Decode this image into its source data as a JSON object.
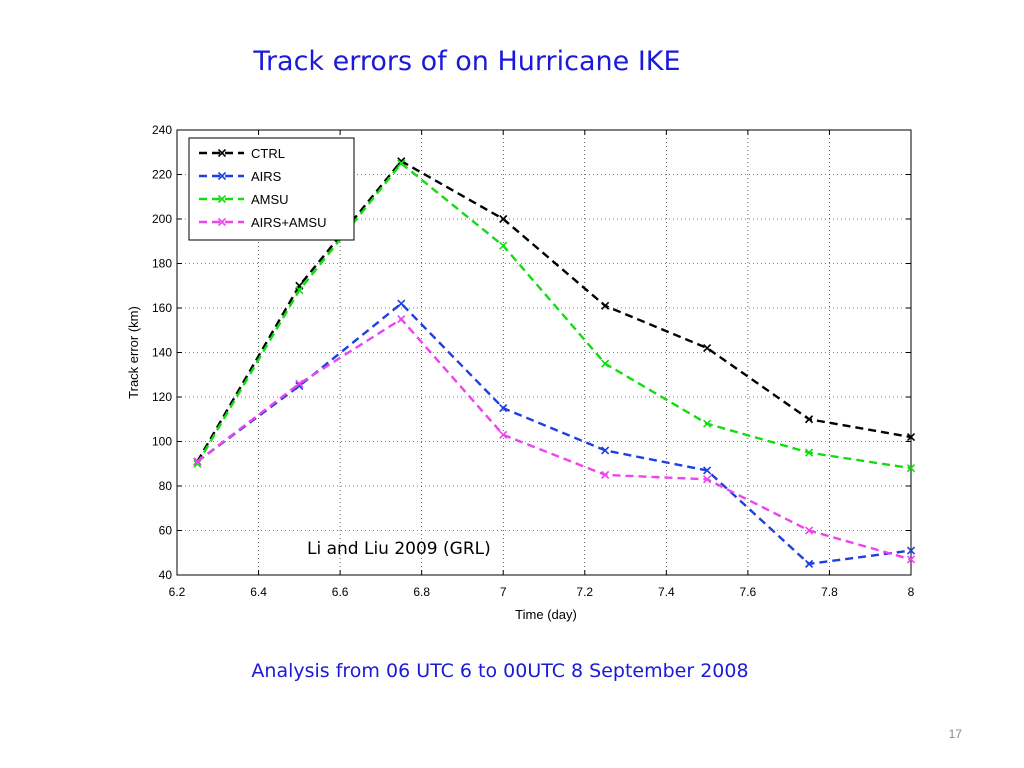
{
  "slide": {
    "title": "Track errors of on Hurricane IKE",
    "subtitle": "Analysis from 06 UTC 6 to 00UTC 8 September 2008",
    "page_number": "17"
  },
  "chart_data": {
    "type": "line",
    "xlabel": "Time (day)",
    "ylabel": "Track error (km)",
    "xlim": [
      6.2,
      8.0
    ],
    "ylim": [
      40,
      240
    ],
    "xticks": [
      "6.2",
      "6.4",
      "6.6",
      "6.8",
      "7",
      "7.2",
      "7.4",
      "7.6",
      "7.8",
      "8"
    ],
    "yticks": [
      "40",
      "60",
      "80",
      "100",
      "120",
      "140",
      "160",
      "180",
      "200",
      "220",
      "240"
    ],
    "grid": "dotted",
    "legend_position": "top-left",
    "annotation": "Li and Liu 2009 (GRL)",
    "x": [
      6.25,
      6.5,
      6.75,
      7.0,
      7.25,
      7.5,
      7.75,
      8.0
    ],
    "series": [
      {
        "name": "CTRL",
        "color": "#000000",
        "values": [
          91,
          170,
          226,
          200,
          161,
          142,
          110,
          102
        ]
      },
      {
        "name": "AIRS",
        "color": "#1f3fe0",
        "values": [
          91,
          125,
          162,
          115,
          96,
          87,
          45,
          51
        ]
      },
      {
        "name": "AMSU",
        "color": "#11dd11",
        "values": [
          90,
          168,
          225,
          188,
          135,
          108,
          95,
          88
        ]
      },
      {
        "name": "AIRS+AMSU",
        "color": "#ee44ee",
        "values": [
          91,
          126,
          155,
          103,
          85,
          83,
          60,
          47
        ]
      }
    ]
  }
}
